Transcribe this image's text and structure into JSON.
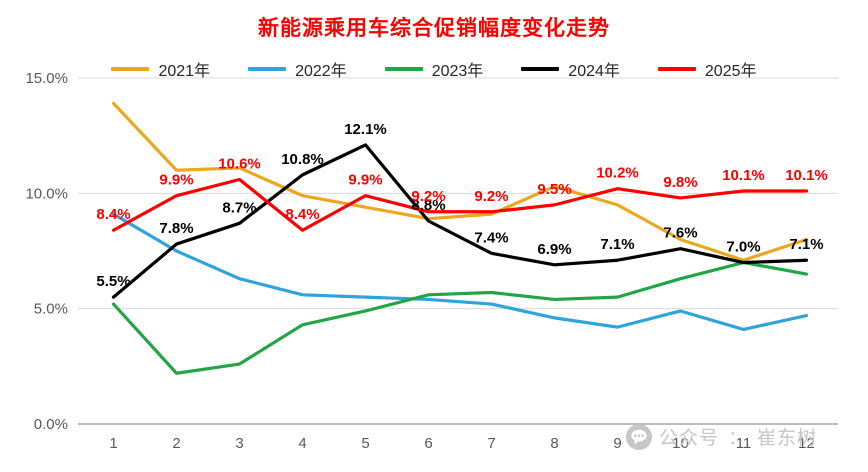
{
  "chart_data": {
    "type": "line",
    "title": "新能源乘用车综合促销幅度变化走势",
    "title_color": "#FF0000",
    "xlabel": "",
    "ylabel": "",
    "x_tick_labels": [
      "1",
      "2",
      "3",
      "4",
      "5",
      "6",
      "7",
      "8",
      "9",
      "10",
      "11",
      "12"
    ],
    "y_tick_labels": [
      "0.0%",
      "5.0%",
      "10.0%",
      "15.0%"
    ],
    "y_tick_values": [
      0,
      5,
      10,
      15
    ],
    "ylim": [
      0,
      15
    ],
    "grid": true,
    "grid_color": "#d9d9d9",
    "axis_label_color": "#595959",
    "legend_position": "top",
    "series": [
      {
        "name": "2021年",
        "color": "#E9A820",
        "show_labels": false,
        "values": [
          13.9,
          11.0,
          11.1,
          9.9,
          9.4,
          8.9,
          9.1,
          10.3,
          9.5,
          8.0,
          7.1,
          8.0
        ]
      },
      {
        "name": "2022年",
        "color": "#31A3DC",
        "show_labels": false,
        "values": [
          9.1,
          7.5,
          6.3,
          5.6,
          5.5,
          5.4,
          5.2,
          4.6,
          4.2,
          4.9,
          4.1,
          4.7
        ]
      },
      {
        "name": "2023年",
        "color": "#22A546",
        "show_labels": false,
        "values": [
          5.2,
          2.2,
          2.6,
          4.3,
          4.9,
          5.6,
          5.7,
          5.4,
          5.5,
          6.3,
          7.0,
          6.5
        ]
      },
      {
        "name": "2024年",
        "color": "#000000",
        "show_labels": true,
        "label_color": "#000000",
        "values": [
          5.5,
          7.8,
          8.7,
          10.8,
          12.1,
          8.8,
          7.4,
          6.9,
          7.1,
          7.6,
          7.0,
          7.1
        ]
      },
      {
        "name": "2025年",
        "color": "#FF0000",
        "show_labels": true,
        "label_color": "#FF0000",
        "values": [
          8.4,
          9.9,
          10.6,
          8.4,
          9.9,
          9.2,
          9.2,
          9.5,
          10.2,
          9.8,
          10.1,
          10.1
        ]
      }
    ]
  },
  "watermark": {
    "icon": "wechat-chat-icon",
    "label": "公众号",
    "separator": "：",
    "name": "崔东树"
  }
}
